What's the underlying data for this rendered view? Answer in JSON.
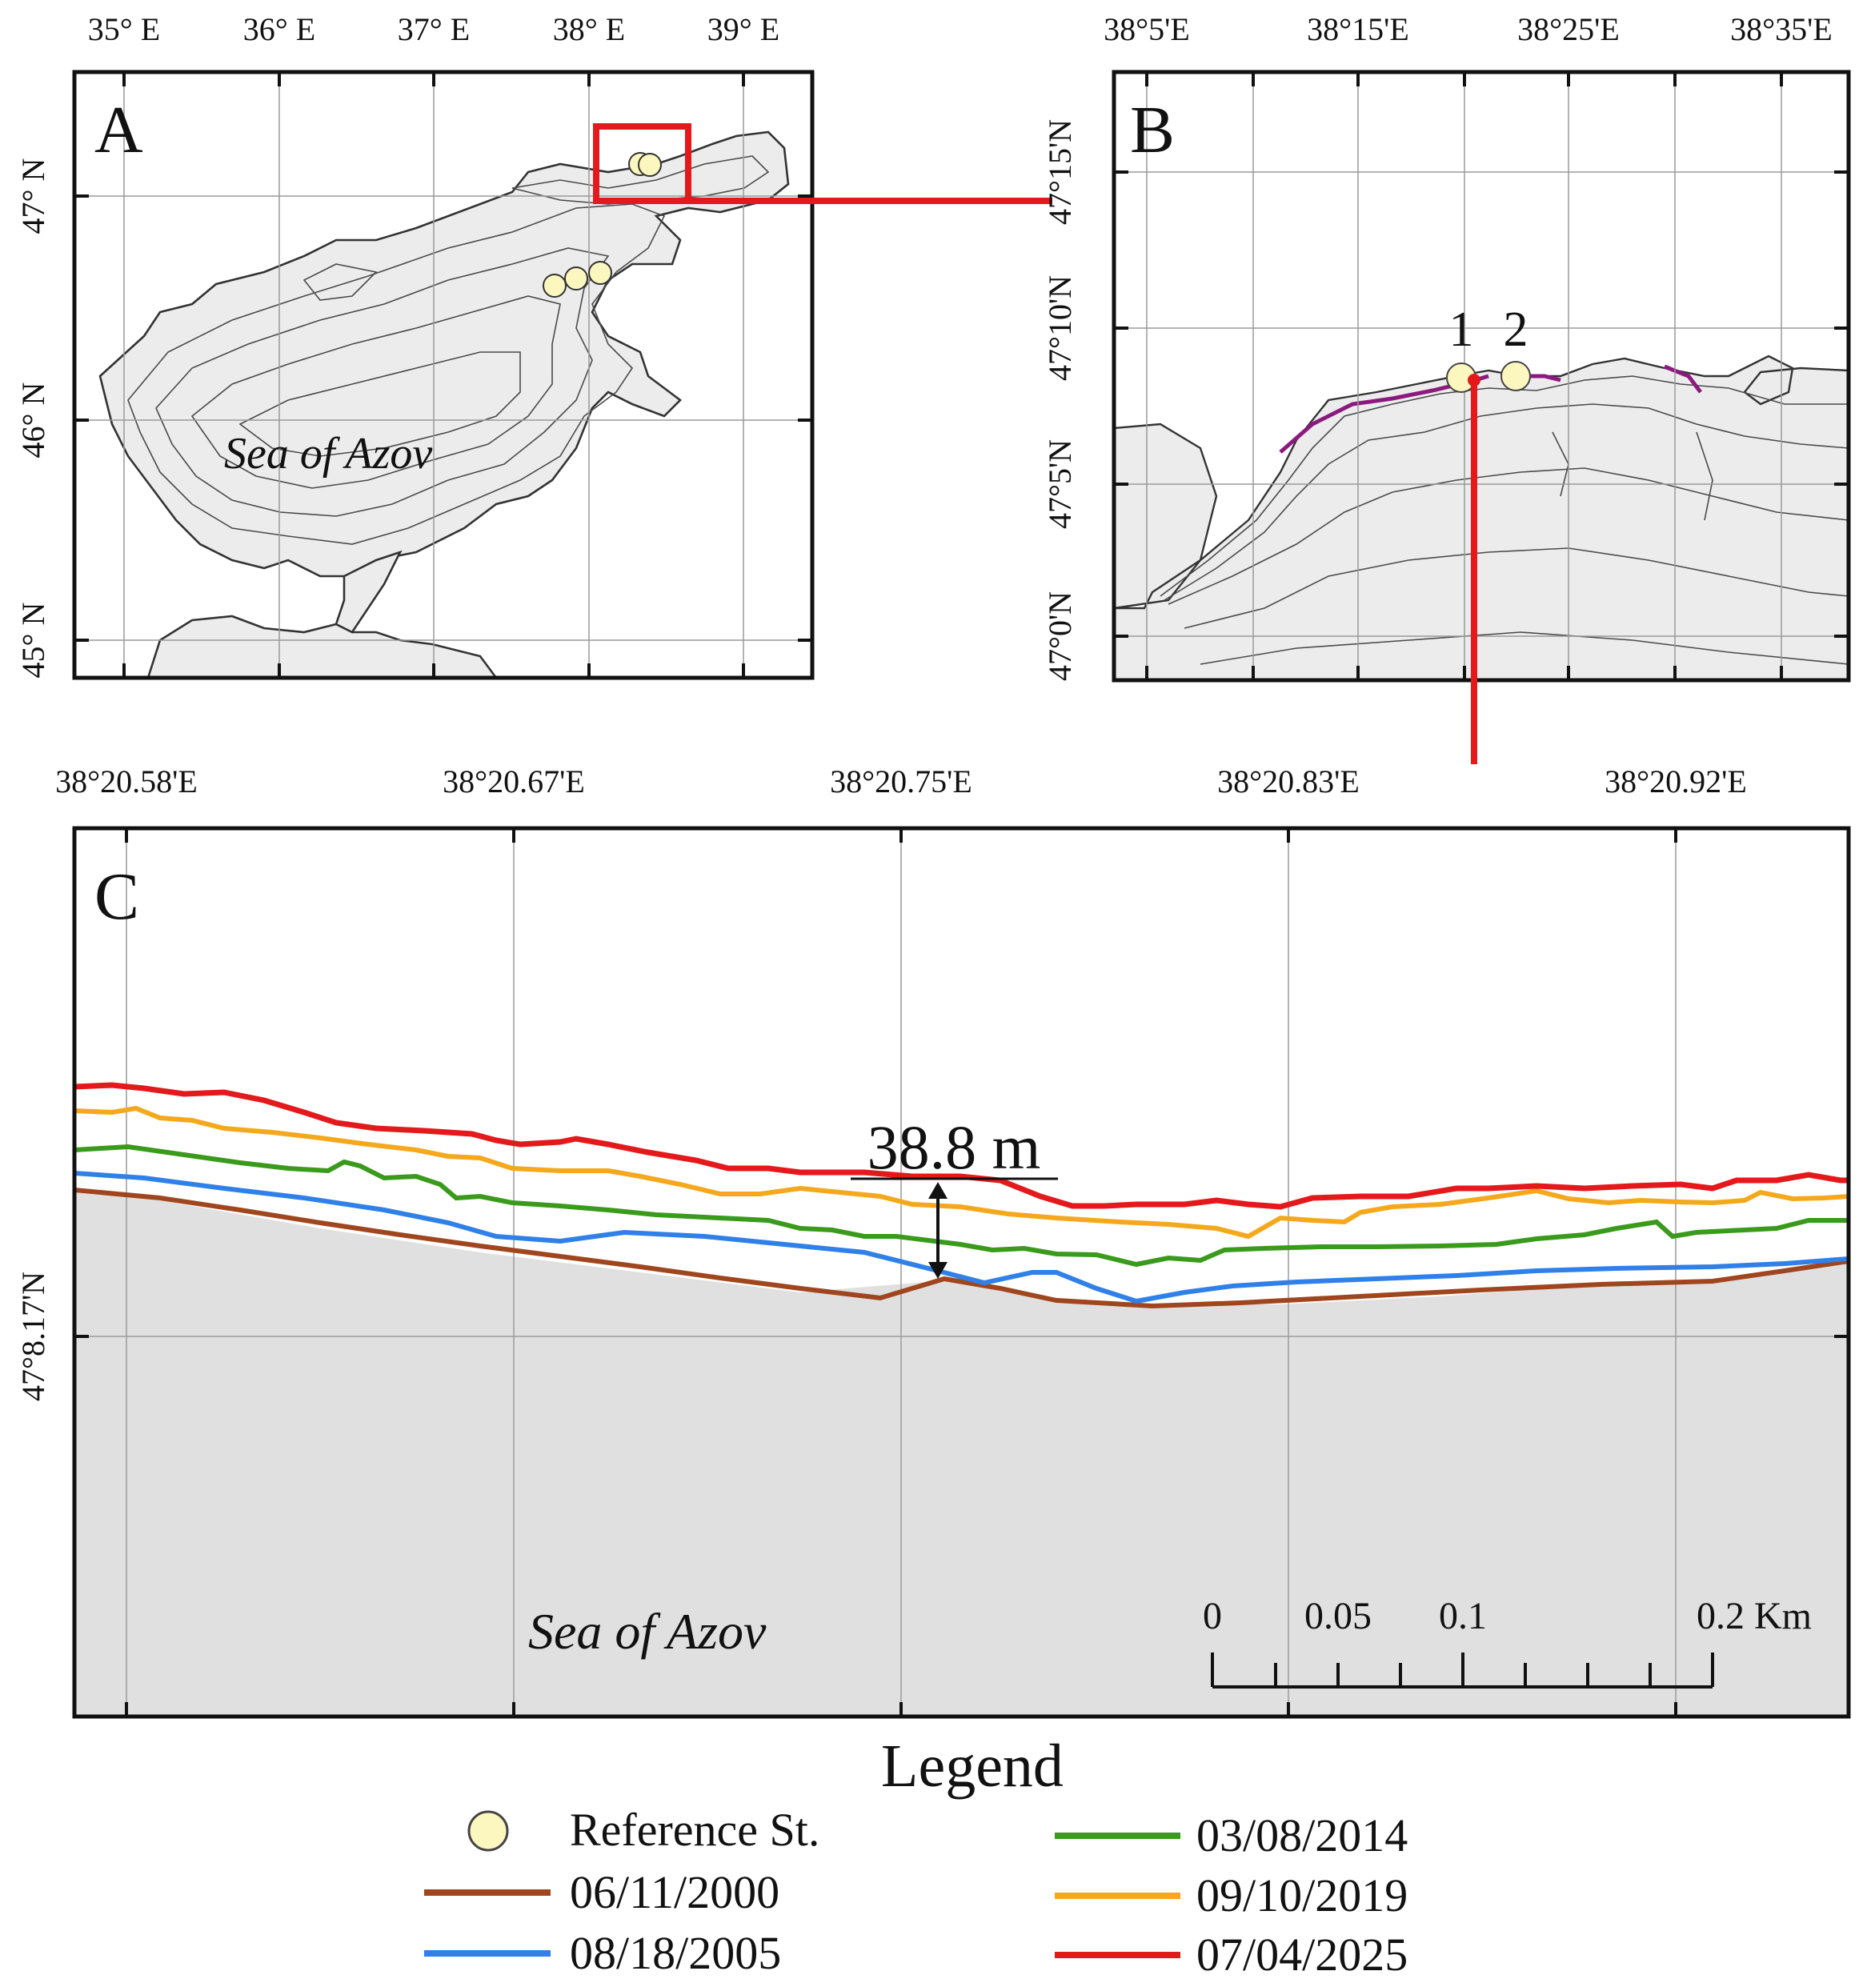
{
  "panels": {
    "A": {
      "letter": "A",
      "x_ticks": [
        "35° E",
        "36° E",
        "37° E",
        "38° E",
        "39° E"
      ],
      "y_ticks": [
        "47° N",
        "46° N",
        "45° N"
      ],
      "sea_label": "Sea of Azov",
      "reference_points": 5
    },
    "B": {
      "letter": "B",
      "x_ticks": [
        "38°5'E",
        "38°15'E",
        "38°25'E",
        "38°35'E"
      ],
      "y_ticks": [
        "47°15'N",
        "47°10'N",
        "47°5'N",
        "47°0'N"
      ],
      "station_labels": [
        "1",
        "2"
      ]
    },
    "C": {
      "letter": "C",
      "x_ticks": [
        "38°20.58'E",
        "38°20.67'E",
        "38°20.75'E",
        "38°20.83'E",
        "38°20.92'E"
      ],
      "y_tick": "47°8.17'N",
      "sea_label": "Sea of Azov",
      "measurement": "38.8 m",
      "scale_bar": {
        "labels": [
          "0",
          "0.05",
          "0.1",
          "0.2 Km"
        ]
      }
    }
  },
  "legend": {
    "title": "Legend",
    "reference_label": "Reference St.",
    "entries": [
      {
        "label": "06/11/2000",
        "color": "#a0461e"
      },
      {
        "label": "08/18/2005",
        "color": "#2f80e8"
      },
      {
        "label": "03/08/2014",
        "color": "#3a9a1c"
      },
      {
        "label": "09/10/2019",
        "color": "#f5a81c"
      },
      {
        "label": "07/04/2025",
        "color": "#e3191c"
      }
    ]
  },
  "colors": {
    "highlight": "#e3191c",
    "land": "#ffffff",
    "sea": "#e0e0e0",
    "reference_fill": "#fbf7bf",
    "coastline_change": "#8c1a7e"
  }
}
